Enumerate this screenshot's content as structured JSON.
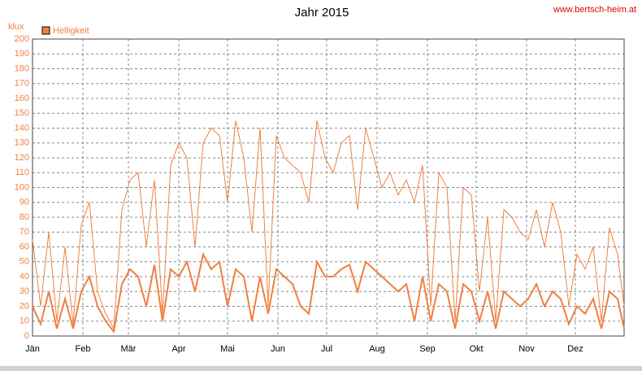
{
  "chart_data": {
    "type": "line",
    "title": "Jahr 2015",
    "site": "www.bertsch-heim.at",
    "ylabel": "klux",
    "x": [
      0,
      5,
      10,
      15,
      20,
      25,
      30,
      35,
      40,
      45,
      50,
      55,
      60,
      65,
      70,
      75,
      80,
      85,
      90,
      95,
      100,
      105,
      110,
      115,
      120,
      125,
      130,
      135,
      140,
      145,
      150,
      155,
      160,
      165,
      170,
      175,
      180,
      185,
      190,
      195,
      200,
      205,
      210,
      215,
      220,
      225,
      230,
      235,
      240,
      245,
      250,
      255,
      260,
      265,
      270,
      275,
      280,
      285,
      290,
      295,
      300,
      305,
      310,
      315,
      320,
      325,
      330,
      335,
      340,
      345,
      350,
      355,
      360,
      364
    ],
    "series": [
      {
        "name": "Helligkeit",
        "color": "#f08040",
        "values": [
          65,
          20,
          70,
          10,
          60,
          8,
          75,
          90,
          30,
          15,
          5,
          85,
          105,
          110,
          60,
          105,
          15,
          115,
          130,
          120,
          60,
          130,
          140,
          135,
          90,
          145,
          120,
          70,
          140,
          20,
          135,
          120,
          115,
          110,
          90,
          145,
          120,
          110,
          130,
          135,
          85,
          140,
          120,
          100,
          110,
          95,
          105,
          90,
          115,
          20,
          110,
          100,
          10,
          100,
          95,
          30,
          80,
          10,
          85,
          80,
          70,
          65,
          85,
          60,
          90,
          70,
          20,
          55,
          45,
          60,
          10,
          73,
          55,
          20
        ]
      },
      {
        "color": "#f08040",
        "values": [
          20,
          8,
          30,
          5,
          25,
          5,
          30,
          40,
          20,
          10,
          3,
          35,
          45,
          40,
          20,
          48,
          10,
          45,
          40,
          50,
          30,
          55,
          45,
          50,
          20,
          45,
          40,
          10,
          40,
          15,
          45,
          40,
          35,
          20,
          15,
          50,
          40,
          40,
          45,
          48,
          30,
          50,
          45,
          40,
          35,
          30,
          35,
          10,
          40,
          10,
          35,
          30,
          5,
          35,
          30,
          10,
          30,
          5,
          30,
          25,
          20,
          25,
          35,
          20,
          30,
          25,
          8,
          20,
          15,
          25,
          5,
          30,
          25,
          5
        ]
      }
    ],
    "xlim": [
      0,
      364
    ],
    "xticks": [
      {
        "value": 0,
        "label": "Jän"
      },
      {
        "value": 31,
        "label": "Feb"
      },
      {
        "value": 59,
        "label": "Mär"
      },
      {
        "value": 90,
        "label": "Apr"
      },
      {
        "value": 120,
        "label": "Mai"
      },
      {
        "value": 151,
        "label": "Jun"
      },
      {
        "value": 181,
        "label": "Jul"
      },
      {
        "value": 212,
        "label": "Aug"
      },
      {
        "value": 243,
        "label": "Sep"
      },
      {
        "value": 273,
        "label": "Okt"
      },
      {
        "value": 304,
        "label": "Nov"
      },
      {
        "value": 334,
        "label": "Dez"
      }
    ],
    "ylim": [
      0,
      200
    ],
    "yticks": [
      0,
      10,
      20,
      30,
      40,
      50,
      60,
      70,
      80,
      90,
      100,
      110,
      120,
      130,
      140,
      150,
      160,
      170,
      180,
      190,
      200
    ],
    "grid": true
  }
}
